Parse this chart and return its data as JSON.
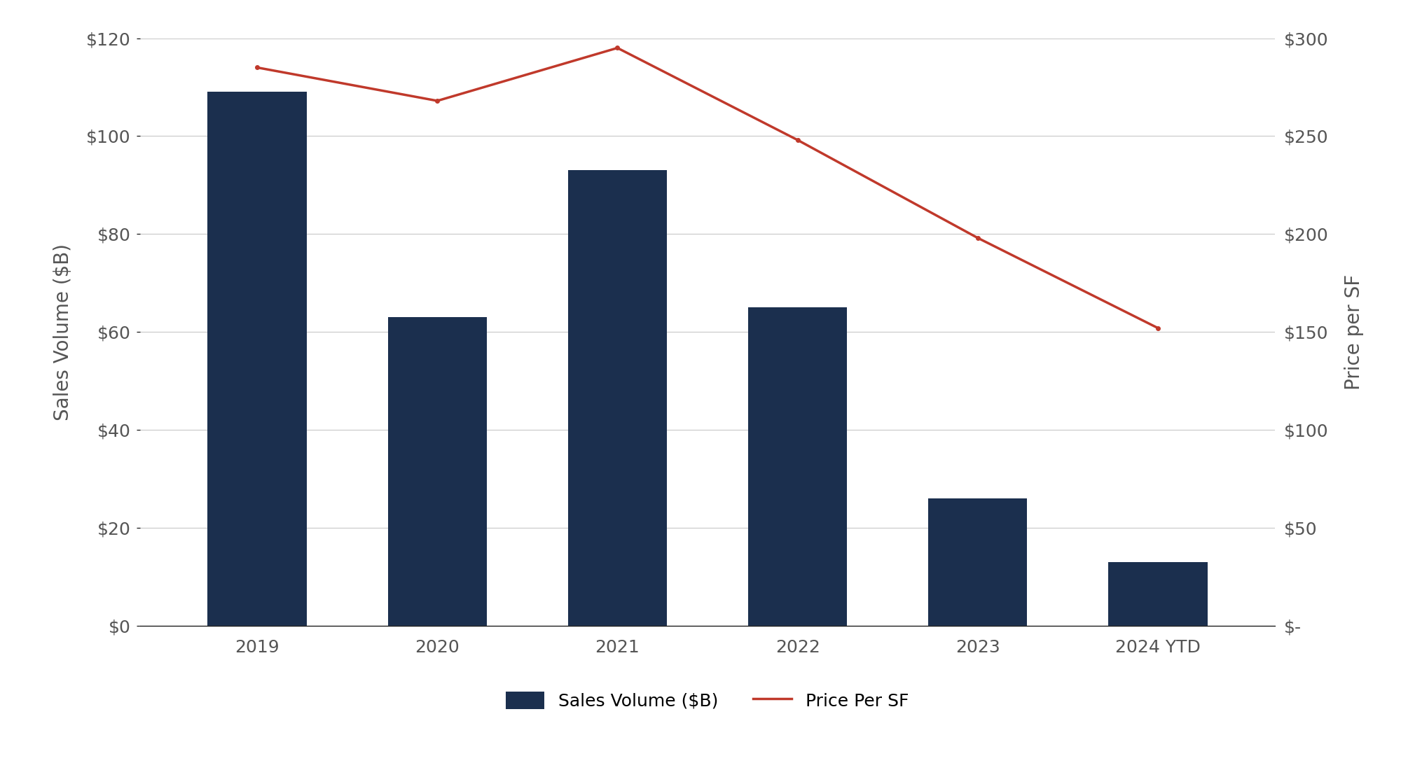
{
  "categories": [
    "2019",
    "2020",
    "2021",
    "2022",
    "2023",
    "2024 YTD"
  ],
  "sales_volume": [
    109,
    63,
    93,
    65,
    26,
    13
  ],
  "price_per_sf": [
    285,
    268,
    295,
    248,
    198,
    152
  ],
  "bar_color": "#1b2f4e",
  "line_color": "#c0392b",
  "left_ylabel": "Sales Volume ($B)",
  "right_ylabel": "Price per SF",
  "left_ylim": [
    0,
    120
  ],
  "left_yticks": [
    0,
    20,
    40,
    60,
    80,
    100,
    120
  ],
  "left_yticklabels": [
    "$0",
    "$20",
    "$40",
    "$60",
    "$80",
    "$100",
    "$120"
  ],
  "right_ylim": [
    0,
    300
  ],
  "right_yticks": [
    0,
    50,
    100,
    150,
    200,
    250,
    300
  ],
  "right_yticklabels": [
    "$-",
    "$50",
    "$100",
    "$150",
    "$200",
    "$250",
    "$300"
  ],
  "legend_items": [
    "Sales Volume ($B)",
    "Price Per SF"
  ],
  "background_color": "#ffffff",
  "grid_color": "#cccccc",
  "tick_label_color": "#555555",
  "axis_label_color": "#555555",
  "bar_width": 0.55,
  "line_width": 2.5,
  "label_fontsize": 20,
  "tick_fontsize": 18,
  "legend_fontsize": 18
}
